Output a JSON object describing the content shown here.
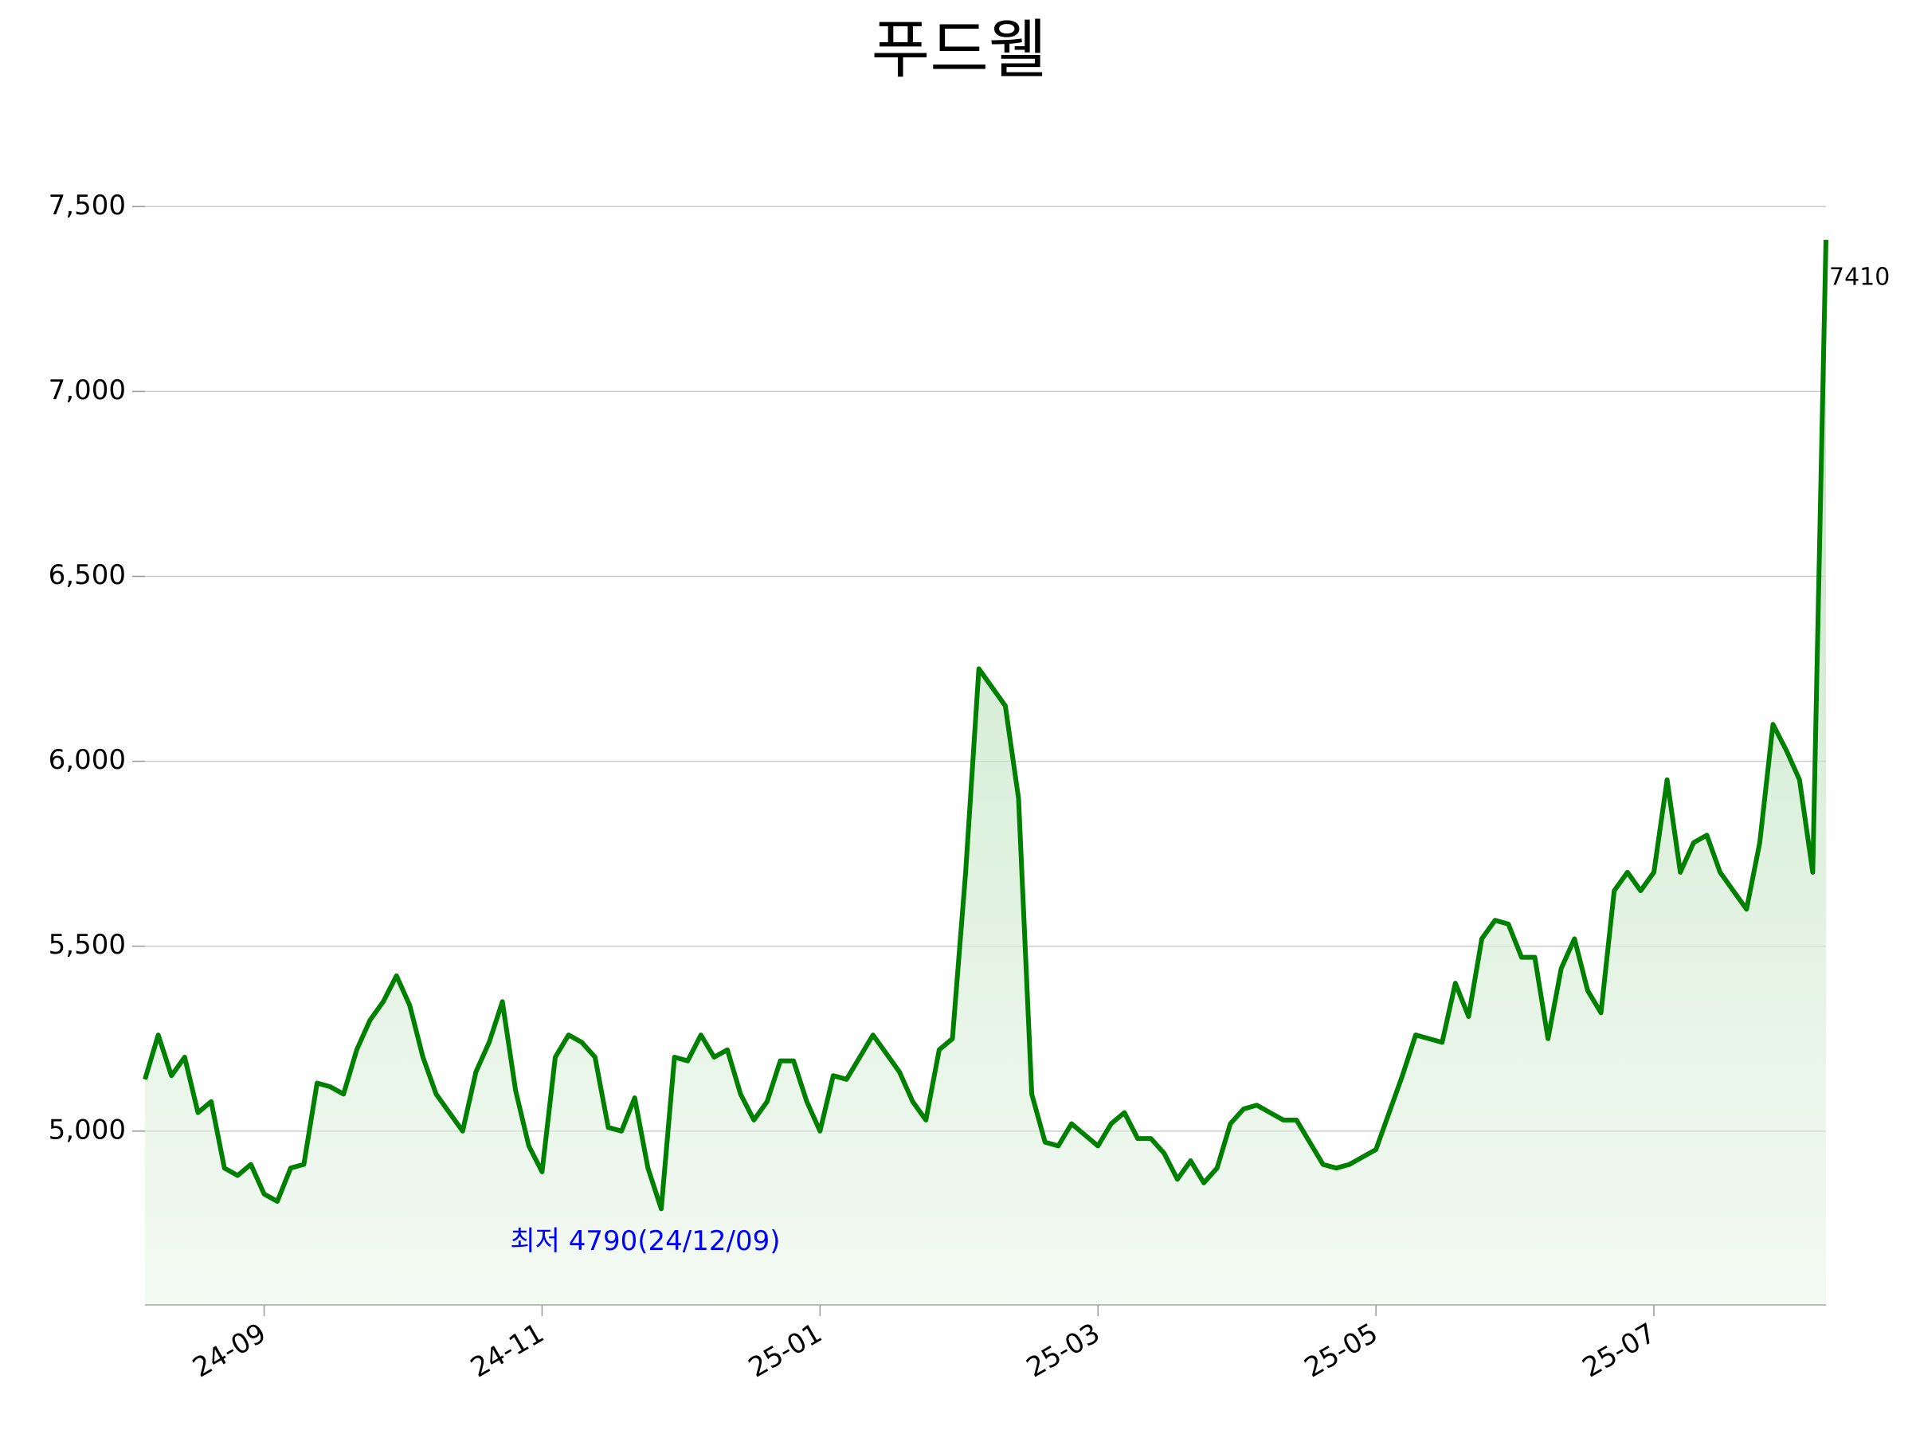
{
  "chart_data": {
    "type": "line",
    "title": "푸드웰",
    "categories": [
      null,
      null,
      null,
      null,
      null,
      null,
      null,
      null,
      null,
      "24-09",
      null,
      null,
      null,
      null,
      null,
      null,
      null,
      null,
      null,
      null,
      null,
      null,
      null,
      null,
      null,
      null,
      null,
      null,
      null,
      null,
      "24-11",
      null,
      null,
      null,
      null,
      null,
      null,
      null,
      null,
      null,
      null,
      null,
      null,
      null,
      null,
      null,
      null,
      null,
      null,
      null,
      null,
      "25-01",
      null,
      null,
      null,
      null,
      null,
      null,
      null,
      null,
      null,
      null,
      null,
      null,
      null,
      null,
      null,
      null,
      null,
      null,
      null,
      null,
      "25-03",
      null,
      null,
      null,
      null,
      null,
      null,
      null,
      null,
      null,
      null,
      null,
      null,
      null,
      null,
      null,
      null,
      null,
      null,
      null,
      null,
      "25-05",
      null,
      null,
      null,
      null,
      null,
      null,
      null,
      null,
      null,
      null,
      null,
      null,
      null,
      null,
      null,
      null,
      null,
      null,
      null,
      null,
      "25-07",
      null,
      null,
      null,
      null,
      null,
      null,
      null,
      null,
      null,
      null,
      null,
      null,
      null
    ],
    "values": [
      5140,
      5260,
      5150,
      5200,
      5050,
      5080,
      4900,
      4880,
      4910,
      4830,
      4810,
      4900,
      4910,
      5130,
      5120,
      5100,
      5220,
      5300,
      5350,
      5420,
      5340,
      5200,
      5100,
      5050,
      5000,
      5160,
      5240,
      5350,
      5110,
      4960,
      4890,
      5200,
      5260,
      5240,
      5200,
      5010,
      5000,
      5090,
      4900,
      4790,
      5200,
      5190,
      5260,
      5200,
      5220,
      5100,
      5030,
      5080,
      5190,
      5190,
      5080,
      5000,
      5150,
      5140,
      5200,
      5260,
      5210,
      5160,
      5080,
      5030,
      5220,
      5250,
      5700,
      6250,
      6200,
      6150,
      5900,
      5100,
      4970,
      4960,
      5020,
      4990,
      4960,
      5020,
      5050,
      4980,
      4980,
      4940,
      4870,
      4920,
      4860,
      4900,
      5020,
      5060,
      5070,
      5050,
      5030,
      5030,
      4970,
      4910,
      4900,
      4910,
      4930,
      4950,
      5050,
      5150,
      5260,
      5250,
      5240,
      5400,
      5310,
      5520,
      5570,
      5560,
      5470,
      5470,
      5250,
      5440,
      5520,
      5380,
      5320,
      5650,
      5700,
      5650,
      5700,
      5950,
      5700,
      5780,
      5800,
      5700,
      5650,
      5600,
      5780,
      6100,
      6030,
      5950,
      5700,
      7410
    ],
    "color": "#008000",
    "ylim": [
      4530,
      7660
    ],
    "yticks": [
      {
        "value": 5000,
        "label": "5,000"
      },
      {
        "value": 5500,
        "label": "5,500"
      },
      {
        "value": 6000,
        "label": "6,000"
      },
      {
        "value": 6500,
        "label": "6,500"
      },
      {
        "value": 7000,
        "label": "7,000"
      },
      {
        "value": 7500,
        "label": "7,500"
      }
    ],
    "grid": true,
    "annotation": "최저 4790(24/12/09)"
  }
}
